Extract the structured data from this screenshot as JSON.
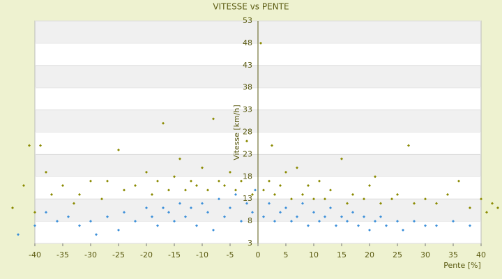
{
  "chart_data": {
    "type": "scatter",
    "title": "VITESSE vs PENTE",
    "x_label": "Pente [%]",
    "y_label": "Vitesse [km/h]",
    "xlim": [
      -40,
      40
    ],
    "xticks": [
      -40,
      -35,
      -30,
      -25,
      -20,
      -15,
      -10,
      -5,
      0,
      5,
      10,
      15,
      20,
      25,
      30,
      35,
      40
    ],
    "ylim": [
      3,
      53
    ],
    "yticks": [
      3,
      8,
      13,
      18,
      23,
      28,
      33,
      38,
      43,
      48,
      53
    ],
    "grid": true,
    "series": [
      {
        "color": "#8a8a00",
        "x": [
          -44,
          -42,
          -41,
          -40,
          -39,
          -38,
          -37,
          -35,
          -33,
          -32,
          -30,
          -28,
          -27,
          -25,
          -24,
          -22,
          -20,
          -19,
          -18,
          -17,
          -16,
          -15,
          -14,
          -13,
          -12,
          -11,
          -10,
          -9,
          -8,
          -7,
          -6,
          -5,
          -4,
          -3,
          -2,
          -1,
          0.5,
          1,
          2,
          2.5,
          3,
          4,
          5,
          6,
          7,
          8,
          9,
          10,
          11,
          12,
          13,
          15,
          16,
          17,
          19,
          20,
          21,
          22,
          24,
          25,
          27,
          28,
          30,
          32,
          34,
          36,
          38,
          40,
          41,
          42,
          43
        ],
        "values": [
          11,
          16,
          25,
          10,
          25,
          19,
          14,
          16,
          12,
          14,
          17,
          13,
          17,
          24,
          15,
          16,
          19,
          14,
          17,
          30,
          15,
          18,
          22,
          15,
          17,
          16,
          20,
          15,
          31,
          17,
          16,
          19,
          15,
          17,
          26,
          14,
          48,
          15,
          17,
          25,
          14,
          16,
          19,
          13,
          20,
          14,
          16,
          13,
          17,
          13,
          15,
          22,
          12,
          14,
          13,
          16,
          18,
          12,
          13,
          14,
          25,
          12,
          13,
          12,
          14,
          17,
          11,
          13,
          10,
          12,
          11
        ]
      },
      {
        "color": "#3b8fd9",
        "x": [
          -43,
          -40,
          -38,
          -36,
          -34,
          -32,
          -30,
          -29,
          -27,
          -25,
          -24,
          -22,
          -20,
          -19,
          -18,
          -17,
          -16,
          -15,
          -14,
          -13,
          -12,
          -11,
          -10,
          -9,
          -8,
          -7,
          -6,
          -5,
          -4,
          -3,
          -2,
          -1,
          -0.5,
          1,
          2,
          3,
          4,
          5,
          6,
          7,
          8,
          9,
          10,
          11,
          12,
          13,
          14,
          15,
          16,
          17,
          18,
          19,
          20,
          21,
          22,
          23,
          25,
          26,
          28,
          30,
          32,
          35,
          38
        ],
        "values": [
          5,
          7,
          10,
          8,
          9,
          7,
          8,
          5,
          9,
          6,
          10,
          8,
          11,
          9,
          7,
          11,
          10,
          8,
          12,
          9,
          11,
          7,
          12,
          10,
          6,
          13,
          9,
          11,
          14,
          8,
          12,
          10,
          15,
          9,
          12,
          8,
          10,
          11,
          8,
          9,
          12,
          7,
          10,
          8,
          9,
          11,
          7,
          9,
          8,
          10,
          7,
          9,
          6,
          8,
          9,
          7,
          8,
          6,
          8,
          7,
          7,
          8,
          7
        ]
      }
    ]
  }
}
